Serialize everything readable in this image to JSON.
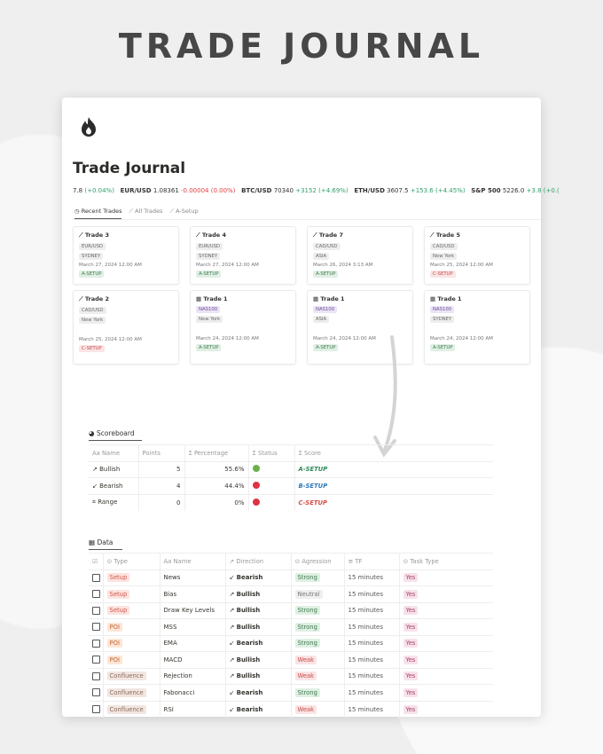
{
  "hero_title": "TRADE JOURNAL",
  "page": {
    "title": "Trade Journal",
    "logo_icon": "flame-icon"
  },
  "ticker": [
    {
      "sym": "",
      "price": "7.8",
      "chg": "(+0.04%)",
      "dir": "up"
    },
    {
      "sym": "EUR/USD",
      "price": "1.08361",
      "chg": "-0.00004 (0.00%)",
      "dir": "dn"
    },
    {
      "sym": "BTC/USD",
      "price": "70340",
      "chg": "+3152 (+4.69%)",
      "dir": "up"
    },
    {
      "sym": "ETH/USD",
      "price": "3607.5",
      "chg": "+153.6 (+4.45%)",
      "dir": "up"
    },
    {
      "sym": "S&P 500",
      "price": "5226.0",
      "chg": "+3.8 (+0.(",
      "dir": "up"
    }
  ],
  "tabs": [
    {
      "label": "Recent Trades",
      "icon": "clock-icon"
    },
    {
      "label": "All Trades",
      "icon": "chart-icon"
    },
    {
      "label": "A-Setup",
      "icon": "chart-icon"
    }
  ],
  "cards": [
    {
      "title": "Trade 3",
      "pair": "EUR/USD",
      "pair_color": "gray",
      "session": "SYDNEY",
      "date": "March 27, 2024 12:00 AM",
      "setup": "A-SETUP",
      "setup_color": "green"
    },
    {
      "title": "Trade 4",
      "pair": "EUR/USD",
      "pair_color": "gray",
      "session": "SYDNEY",
      "date": "March 27, 2024 12:00 AM",
      "setup": "A-SETUP",
      "setup_color": "green"
    },
    {
      "title": "Trade 7",
      "pair": "CAD/USD",
      "pair_color": "gray",
      "session": "ASIA",
      "date": "March 26, 2024 3:13 AM",
      "setup": "A-SETUP",
      "setup_color": "green"
    },
    {
      "title": "Trade 5",
      "pair": "CAD/USD",
      "pair_color": "gray",
      "session": "New York",
      "date": "March 25, 2024 12:00 AM",
      "setup": "C-SETUP",
      "setup_color": "red"
    },
    {
      "title": "Trade 2",
      "pair": "CAD/USD",
      "pair_color": "gray",
      "session": "New York",
      "date": "March 25, 2024 12:00 AM",
      "setup": "C-SETUP",
      "setup_color": "red"
    },
    {
      "title": "Trade 1",
      "pair": "NAS100",
      "pair_color": "purple",
      "session": "New York",
      "date": "March 24, 2024 12:00 AM",
      "setup": "A-SETUP",
      "setup_color": "green"
    },
    {
      "title": "Trade 1",
      "pair": "NAS100",
      "pair_color": "purple",
      "session": "ASIA",
      "date": "March 24, 2024 12:00 AM",
      "setup": "A-SETUP",
      "setup_color": "green"
    },
    {
      "title": "Trade 1",
      "pair": "NAS100",
      "pair_color": "purple",
      "session": "SYDNEY",
      "date": "March 24, 2024 12:00 AM",
      "setup": "A-SETUP",
      "setup_color": "green"
    }
  ],
  "scoreboard": {
    "tab": "Scoreboard",
    "headers": [
      "Aa Name",
      "Points",
      "Σ Percentage",
      "Σ Status",
      "Σ Score"
    ],
    "rows": [
      {
        "icon": "↗",
        "name": "Bullish",
        "points": "5",
        "pct": "55.6%",
        "status_color": "#6ab04c",
        "score": "A-SETUP",
        "score_color": "#2f8a5a"
      },
      {
        "icon": "↙",
        "name": "Bearish",
        "points": "4",
        "pct": "44.4%",
        "status_color": "#dd3344",
        "score": "B-SETUP",
        "score_color": "#2e78b7"
      },
      {
        "icon": "⌗",
        "name": "Range",
        "points": "0",
        "pct": "0%",
        "status_color": "#dd3344",
        "score": "C-SETUP",
        "score_color": "#d44c47"
      }
    ]
  },
  "data": {
    "tab": "Data",
    "headers": [
      "Type",
      "Aa Name",
      "↗ Direction",
      "Agression",
      "TF",
      "Task Type"
    ],
    "rows": [
      {
        "type": "Setup",
        "name": "News",
        "dir": "Bearish",
        "agr": "Strong",
        "tf": "15 minutes",
        "task": "Yes"
      },
      {
        "type": "Setup",
        "name": "Bias",
        "dir": "Bullish",
        "agr": "Neutral",
        "tf": "15 minutes",
        "task": "Yes"
      },
      {
        "type": "Setup",
        "name": "Draw Key Levels",
        "dir": "Bullish",
        "agr": "Strong",
        "tf": "15 minutes",
        "task": "Yes"
      },
      {
        "type": "POI",
        "name": "MSS",
        "dir": "Bullish",
        "agr": "Strong",
        "tf": "15 minutes",
        "task": "Yes"
      },
      {
        "type": "POI",
        "name": "EMA",
        "dir": "Bearish",
        "agr": "Strong",
        "tf": "15 minutes",
        "task": "Yes"
      },
      {
        "type": "POI",
        "name": "MACD",
        "dir": "Bullish",
        "agr": "Weak",
        "tf": "15 minutes",
        "task": "Yes"
      },
      {
        "type": "Confluence",
        "name": "Rejection",
        "dir": "Bullish",
        "agr": "Weak",
        "tf": "15 minutes",
        "task": "Yes"
      },
      {
        "type": "Confluence",
        "name": "Fabonacci",
        "dir": "Bearish",
        "agr": "Strong",
        "tf": "15 minutes",
        "task": "Yes"
      },
      {
        "type": "Confluence",
        "name": "RSI",
        "dir": "Bearish",
        "agr": "Weak",
        "tf": "15 minutes",
        "task": "Yes"
      }
    ]
  },
  "colors": {
    "type": {
      "Setup": [
        "#fde3e0",
        "#d0574b"
      ],
      "POI": [
        "#fce6d6",
        "#c4683a"
      ],
      "Confluence": [
        "#f2e6e1",
        "#8d6a5c"
      ]
    },
    "agr": {
      "Strong": [
        "#dff0e3",
        "#3d7a4f"
      ],
      "Neutral": [
        "#efefef",
        "#777"
      ],
      "Weak": [
        "#fbe4e4",
        "#c74a4a"
      ]
    },
    "task": [
      "#f8e1ea",
      "#a5456b"
    ]
  }
}
